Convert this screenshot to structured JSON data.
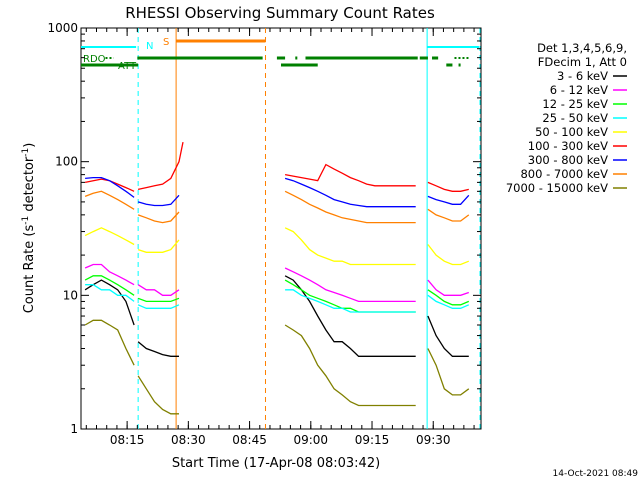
{
  "chart_data": {
    "type": "line",
    "title": "RHESSI Observing Summary Count Rates",
    "xlabel": "Start Time (17-Apr-08 08:03:42)",
    "ylabel_main": "Count Rate (s",
    "ylabel_sup1": "-1",
    "ylabel_mid": " detector",
    "ylabel_sup2": "-1",
    "ylabel_end": ")",
    "y_scale": "log",
    "ylim": [
      1,
      1000
    ],
    "xlim_minutes": [
      0,
      98
    ],
    "x_ticks": [
      {
        "label": "08:15",
        "minute": 11.3
      },
      {
        "label": "08:30",
        "minute": 26.3
      },
      {
        "label": "08:45",
        "minute": 41.3
      },
      {
        "label": "09:00",
        "minute": 56.3
      },
      {
        "label": "09:15",
        "minute": 71.3
      },
      {
        "label": "09:30",
        "minute": 86.3
      }
    ],
    "y_ticks": [
      {
        "label": "1",
        "value": 1
      },
      {
        "label": "10",
        "value": 10
      },
      {
        "label": "100",
        "value": 100
      },
      {
        "label": "1000",
        "value": 1000
      }
    ],
    "legend_header": [
      "Det 1,3,4,5,6,9,",
      "FDecim 1, Att 0"
    ],
    "series": [
      {
        "name": "3 - 6 keV",
        "color": "#000000",
        "segments": [
          {
            "x": [
              1,
              3,
              5,
              7,
              9,
              11,
              13
            ],
            "y": [
              11,
              12,
              13,
              12,
              11,
              9,
              6
            ]
          },
          {
            "x": [
              14,
              16,
              18,
              20,
              22,
              24
            ],
            "y": [
              4.5,
              4,
              3.8,
              3.6,
              3.5,
              3.5
            ]
          },
          {
            "x": [
              50,
              52,
              54,
              56,
              58,
              60,
              62,
              64,
              66,
              68,
              70,
              72,
              74,
              76,
              78,
              80,
              82
            ],
            "y": [
              14,
              13,
              11,
              9,
              7,
              5.5,
              4.5,
              4.5,
              4,
              3.5,
              3.5,
              3.5,
              3.5,
              3.5,
              3.5,
              3.5,
              3.5
            ]
          },
          {
            "x": [
              85,
              87,
              89,
              91,
              93,
              95
            ],
            "y": [
              7,
              5,
              4,
              3.5,
              3.5,
              3.5
            ]
          }
        ]
      },
      {
        "name": "6 - 12 keV",
        "color": "#ff00ff",
        "segments": [
          {
            "x": [
              1,
              3,
              5,
              7,
              9,
              11,
              13
            ],
            "y": [
              16,
              17,
              17,
              15,
              14,
              13,
              12
            ]
          },
          {
            "x": [
              14,
              16,
              18,
              20,
              22,
              24
            ],
            "y": [
              12,
              11,
              11,
              10,
              10,
              11
            ]
          },
          {
            "x": [
              50,
              52,
              54,
              56,
              58,
              60,
              62,
              64,
              66,
              68,
              70,
              72,
              74,
              76,
              78,
              80,
              82
            ],
            "y": [
              16,
              15,
              14,
              13,
              12,
              11,
              10.5,
              10,
              9.5,
              9,
              9,
              9,
              9,
              9,
              9,
              9,
              9
            ]
          },
          {
            "x": [
              85,
              87,
              89,
              91,
              93,
              95
            ],
            "y": [
              13,
              11,
              10,
              10,
              10,
              10.5
            ]
          }
        ]
      },
      {
        "name": "12 - 25 keV",
        "color": "#00ff00",
        "segments": [
          {
            "x": [
              1,
              3,
              5,
              7,
              9,
              11,
              13
            ],
            "y": [
              13,
              14,
              14,
              13,
              12,
              11,
              10
            ]
          },
          {
            "x": [
              14,
              16,
              18,
              20,
              22,
              24
            ],
            "y": [
              9.5,
              9,
              9,
              9,
              9,
              9.5
            ]
          },
          {
            "x": [
              50,
              52,
              54,
              56,
              58,
              60,
              62,
              64,
              66,
              68,
              70,
              72,
              74,
              76,
              78,
              80,
              82
            ],
            "y": [
              13,
              12,
              11,
              10,
              9.5,
              9,
              8.5,
              8,
              8,
              7.5,
              7.5,
              7.5,
              7.5,
              7.5,
              7.5,
              7.5,
              7.5
            ]
          },
          {
            "x": [
              85,
              87,
              89,
              91,
              93,
              95
            ],
            "y": [
              11,
              10,
              9,
              8.5,
              8.5,
              9
            ]
          }
        ]
      },
      {
        "name": "25 - 50 keV",
        "color": "#00ffff",
        "segments": [
          {
            "x": [
              1,
              3,
              5,
              7,
              9,
              11,
              13
            ],
            "y": [
              12,
              12,
              11,
              11,
              10,
              10,
              9
            ]
          },
          {
            "x": [
              14,
              16,
              18,
              20,
              22,
              24
            ],
            "y": [
              8.5,
              8,
              8,
              8,
              8,
              8.5
            ]
          },
          {
            "x": [
              50,
              52,
              54,
              56,
              58,
              60,
              62,
              64,
              66,
              68,
              70,
              72,
              74,
              76,
              78,
              80,
              82
            ],
            "y": [
              11,
              11,
              10,
              9.5,
              9,
              8.5,
              8,
              8,
              7.5,
              7.5,
              7.5,
              7.5,
              7.5,
              7.5,
              7.5,
              7.5,
              7.5
            ]
          },
          {
            "x": [
              85,
              87,
              89,
              91,
              93,
              95
            ],
            "y": [
              10,
              9,
              8.5,
              8,
              8,
              8.5
            ]
          }
        ]
      },
      {
        "name": "50 - 100 keV",
        "color": "#ffff00",
        "segments": [
          {
            "x": [
              1,
              3,
              5,
              7,
              9,
              11,
              13
            ],
            "y": [
              28,
              30,
              32,
              30,
              28,
              26,
              24
            ]
          },
          {
            "x": [
              14,
              16,
              18,
              20,
              22,
              24
            ],
            "y": [
              22,
              21,
              21,
              21,
              22,
              26
            ]
          },
          {
            "x": [
              50,
              52,
              54,
              56,
              58,
              60,
              62,
              64,
              66,
              68,
              70,
              72,
              74,
              76,
              78,
              80,
              82
            ],
            "y": [
              32,
              30,
              26,
              22,
              20,
              19,
              18,
              18,
              17,
              17,
              17,
              17,
              17,
              17,
              17,
              17,
              17
            ]
          },
          {
            "x": [
              85,
              87,
              89,
              91,
              93,
              95
            ],
            "y": [
              24,
              20,
              18,
              17,
              17,
              18
            ]
          }
        ]
      },
      {
        "name": "100 - 300 keV",
        "color": "#ff0000",
        "segments": [
          {
            "x": [
              1,
              3,
              5,
              7,
              9,
              11,
              13
            ],
            "y": [
              70,
              72,
              74,
              72,
              68,
              64,
              60
            ]
          },
          {
            "x": [
              14,
              16,
              18,
              20,
              22,
              24,
              25
            ],
            "y": [
              62,
              64,
              66,
              68,
              75,
              100,
              140
            ]
          },
          {
            "x": [
              50,
              52,
              54,
              56,
              58,
              60,
              62,
              64,
              66,
              68,
              70,
              72,
              74,
              76,
              78,
              80,
              82
            ],
            "y": [
              80,
              78,
              76,
              74,
              72,
              95,
              88,
              82,
              76,
              72,
              68,
              66,
              66,
              66,
              66,
              66,
              66
            ]
          },
          {
            "x": [
              85,
              87,
              89,
              91,
              93,
              95
            ],
            "y": [
              70,
              66,
              62,
              60,
              60,
              62
            ]
          }
        ]
      },
      {
        "name": "300 - 800 keV",
        "color": "#0000ff",
        "segments": [
          {
            "x": [
              1,
              3,
              5,
              7,
              9,
              11,
              13
            ],
            "y": [
              75,
              76,
              76,
              72,
              66,
              60,
              54
            ]
          },
          {
            "x": [
              14,
              16,
              18,
              20,
              22,
              24
            ],
            "y": [
              50,
              48,
              47,
              47,
              48,
              56
            ]
          },
          {
            "x": [
              50,
              52,
              54,
              56,
              58,
              60,
              62,
              64,
              66,
              68,
              70,
              72,
              74,
              76,
              78,
              80,
              82
            ],
            "y": [
              75,
              72,
              68,
              64,
              60,
              56,
              52,
              50,
              48,
              47,
              46,
              46,
              46,
              46,
              46,
              46,
              46
            ]
          },
          {
            "x": [
              85,
              87,
              89,
              91,
              93,
              95
            ],
            "y": [
              55,
              52,
              50,
              48,
              48,
              56
            ]
          }
        ]
      },
      {
        "name": "800 - 7000 keV",
        "color": "#ff8000",
        "segments": [
          {
            "x": [
              1,
              3,
              5,
              7,
              9,
              11,
              13
            ],
            "y": [
              55,
              58,
              60,
              56,
              52,
              48,
              44
            ]
          },
          {
            "x": [
              14,
              16,
              18,
              20,
              22,
              24
            ],
            "y": [
              40,
              38,
              36,
              35,
              36,
              42
            ]
          },
          {
            "x": [
              50,
              52,
              54,
              56,
              58,
              60,
              62,
              64,
              66,
              68,
              70,
              72,
              74,
              76,
              78,
              80,
              82
            ],
            "y": [
              60,
              56,
              52,
              48,
              45,
              42,
              40,
              38,
              37,
              36,
              35,
              35,
              35,
              35,
              35,
              35,
              35
            ]
          },
          {
            "x": [
              85,
              87,
              89,
              91,
              93,
              95
            ],
            "y": [
              44,
              40,
              38,
              36,
              36,
              40
            ]
          }
        ]
      },
      {
        "name": "7000 - 15000 keV",
        "color": "#808000",
        "segments": [
          {
            "x": [
              1,
              3,
              5,
              7,
              9,
              11,
              13
            ],
            "y": [
              6,
              6.5,
              6.5,
              6,
              5.5,
              4,
              3
            ]
          },
          {
            "x": [
              14,
              16,
              18,
              20,
              22,
              24
            ],
            "y": [
              2.5,
              2,
              1.6,
              1.4,
              1.3,
              1.3
            ]
          },
          {
            "x": [
              50,
              52,
              54,
              56,
              58,
              60,
              62,
              64,
              66,
              68,
              70,
              72,
              74,
              76,
              78,
              80,
              82
            ],
            "y": [
              6,
              5.5,
              5,
              4,
              3,
              2.5,
              2,
              1.8,
              1.6,
              1.5,
              1.5,
              1.5,
              1.5,
              1.5,
              1.5,
              1.5,
              1.5
            ]
          },
          {
            "x": [
              85,
              87,
              89,
              91,
              93,
              95
            ],
            "y": [
              4,
              3,
              2,
              1.8,
              1.8,
              2
            ]
          }
        ]
      }
    ],
    "flags": {
      "saa_label": "N",
      "flare_label": "S",
      "rdo_label": "RDO",
      "att_label": "ATT",
      "colors": {
        "cyan": "#00ffff",
        "orange": "#ff8000",
        "green": "#008000"
      }
    },
    "vertical_markers": [
      {
        "minute": 14.0,
        "color": "#00ffff",
        "style": "dashed"
      },
      {
        "minute": 23.3,
        "color": "#ff8000",
        "style": "solid"
      },
      {
        "minute": 45.2,
        "color": "#ff8000",
        "style": "dashed"
      },
      {
        "minute": 84.8,
        "color": "#00ffff",
        "style": "solid"
      },
      {
        "minute": 98.0,
        "color": "#00ffff",
        "style": "dashed"
      }
    ],
    "footer_date": "14-Oct-2021 08:49"
  }
}
